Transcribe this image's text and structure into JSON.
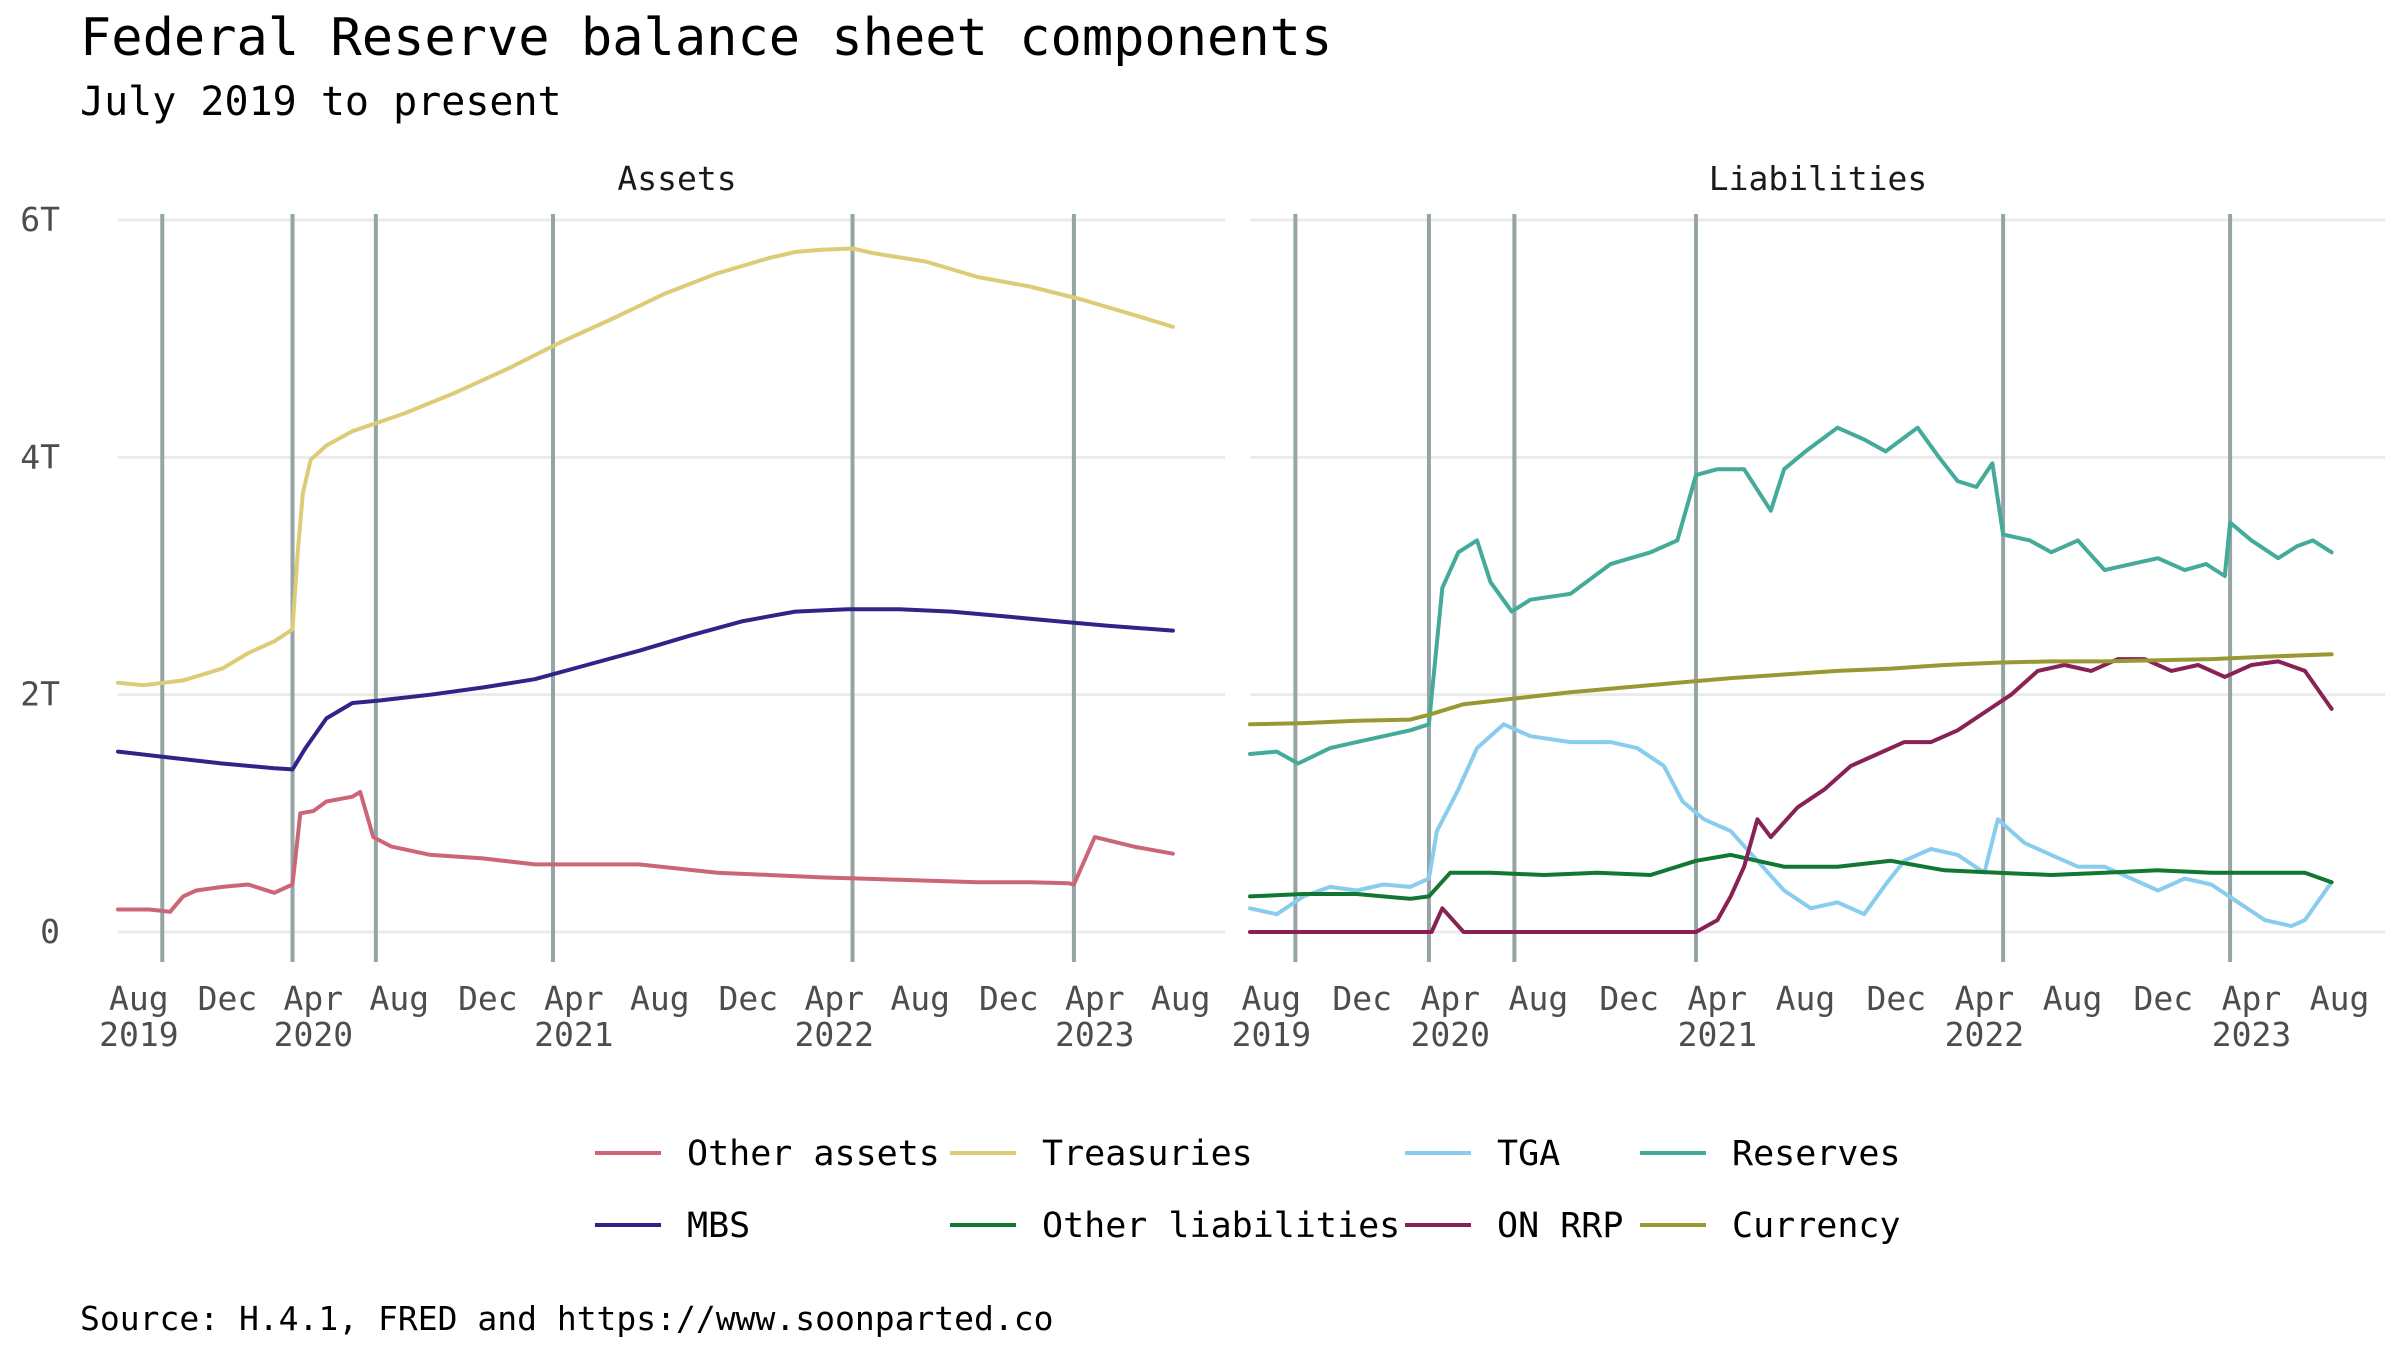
{
  "title": "Federal Reserve balance sheet components",
  "subtitle": "July 2019 to present",
  "caption": "Source: H.4.1, FRED and https://www.soonparted.co",
  "colors": {
    "other_assets": "#cc6677",
    "treasuries": "#ddcc77",
    "mbs": "#332288",
    "tga": "#88ccee",
    "reserves": "#44aa99",
    "other_liabilities": "#117733",
    "on_rrp": "#882255",
    "currency": "#999933",
    "event_lines": "#95a5a6"
  },
  "chart_data": {
    "type": "line",
    "facets": [
      "Assets",
      "Liabilities"
    ],
    "y_axis": {
      "ticks": [
        0,
        2,
        4,
        6
      ],
      "tick_labels": [
        "0",
        "2T",
        "4T",
        "6T"
      ],
      "ylim": [
        0,
        6
      ],
      "unit": "trillions USD"
    },
    "x_axis": {
      "xlim": [
        2019.5,
        2023.75
      ],
      "ticks": [
        2019.58,
        2019.92,
        2020.25,
        2020.58,
        2020.92,
        2021.25,
        2021.58,
        2021.92,
        2022.25,
        2022.58,
        2022.92,
        2023.25,
        2023.58
      ],
      "tick_labels": [
        "Aug\n2019",
        "Dec",
        "Apr\n2020",
        "Aug",
        "Dec",
        "Apr\n2021",
        "Aug",
        "Dec",
        "Apr\n2022",
        "Aug",
        "Dec",
        "Apr\n2023",
        "Aug"
      ]
    },
    "event_lines_x": [
      2019.67,
      2020.17,
      2020.49,
      2021.17,
      2022.32,
      2023.17
    ],
    "series": [
      {
        "facet": "Assets",
        "key": "other_assets",
        "name": "Other assets",
        "x": [
          2019.5,
          2019.62,
          2019.7,
          2019.75,
          2019.8,
          2019.9,
          2020.0,
          2020.1,
          2020.17,
          2020.2,
          2020.25,
          2020.3,
          2020.4,
          2020.43,
          2020.48,
          2020.55,
          2020.7,
          2020.9,
          2021.1,
          2021.3,
          2021.5,
          2021.8,
          2022.0,
          2022.2,
          2022.5,
          2022.8,
          2023.0,
          2023.15,
          2023.17,
          2023.25,
          2023.4,
          2023.55
        ],
        "values": [
          0.19,
          0.19,
          0.17,
          0.3,
          0.35,
          0.38,
          0.4,
          0.33,
          0.4,
          1.0,
          1.02,
          1.1,
          1.14,
          1.18,
          0.8,
          0.72,
          0.65,
          0.62,
          0.57,
          0.57,
          0.57,
          0.5,
          0.48,
          0.46,
          0.44,
          0.42,
          0.42,
          0.41,
          0.4,
          0.8,
          0.72,
          0.66
        ]
      },
      {
        "facet": "Assets",
        "key": "treasuries",
        "name": "Treasuries",
        "x": [
          2019.5,
          2019.6,
          2019.75,
          2019.9,
          2020.0,
          2020.1,
          2020.17,
          2020.19,
          2020.21,
          2020.24,
          2020.3,
          2020.4,
          2020.6,
          2020.8,
          2021.0,
          2021.2,
          2021.4,
          2021.6,
          2021.8,
          2022.0,
          2022.1,
          2022.2,
          2022.32,
          2022.4,
          2022.6,
          2022.8,
          2023.0,
          2023.2,
          2023.4,
          2023.55
        ],
        "values": [
          2.1,
          2.08,
          2.12,
          2.22,
          2.35,
          2.45,
          2.55,
          3.2,
          3.7,
          3.98,
          4.1,
          4.22,
          4.37,
          4.55,
          4.75,
          4.97,
          5.17,
          5.38,
          5.55,
          5.68,
          5.73,
          5.75,
          5.76,
          5.72,
          5.65,
          5.52,
          5.44,
          5.33,
          5.2,
          5.1
        ]
      },
      {
        "facet": "Assets",
        "key": "mbs",
        "name": "MBS",
        "x": [
          2019.5,
          2019.7,
          2019.9,
          2020.1,
          2020.17,
          2020.22,
          2020.3,
          2020.4,
          2020.5,
          2020.7,
          2020.9,
          2021.1,
          2021.3,
          2021.5,
          2021.7,
          2021.9,
          2022.1,
          2022.3,
          2022.5,
          2022.7,
          2022.9,
          2023.1,
          2023.3,
          2023.55
        ],
        "values": [
          1.52,
          1.47,
          1.42,
          1.38,
          1.37,
          1.55,
          1.8,
          1.93,
          1.95,
          2.0,
          2.06,
          2.13,
          2.25,
          2.37,
          2.5,
          2.62,
          2.7,
          2.72,
          2.72,
          2.7,
          2.66,
          2.62,
          2.58,
          2.54
        ]
      },
      {
        "facet": "Liabilities",
        "key": "tga",
        "name": "TGA",
        "x": [
          2019.5,
          2019.6,
          2019.7,
          2019.8,
          2019.9,
          2020.0,
          2020.1,
          2020.17,
          2020.2,
          2020.28,
          2020.35,
          2020.45,
          2020.55,
          2020.7,
          2020.85,
          2020.95,
          2021.05,
          2021.12,
          2021.2,
          2021.3,
          2021.4,
          2021.5,
          2021.6,
          2021.7,
          2021.8,
          2021.88,
          2021.95,
          2022.05,
          2022.15,
          2022.25,
          2022.3,
          2022.4,
          2022.5,
          2022.6,
          2022.7,
          2022.8,
          2022.9,
          2023.0,
          2023.1,
          2023.2,
          2023.3,
          2023.4,
          2023.45,
          2023.55
        ],
        "values": [
          0.2,
          0.15,
          0.3,
          0.38,
          0.35,
          0.4,
          0.38,
          0.45,
          0.85,
          1.2,
          1.55,
          1.75,
          1.65,
          1.6,
          1.6,
          1.55,
          1.4,
          1.1,
          0.95,
          0.85,
          0.6,
          0.35,
          0.2,
          0.25,
          0.15,
          0.4,
          0.6,
          0.7,
          0.65,
          0.5,
          0.95,
          0.75,
          0.65,
          0.55,
          0.55,
          0.45,
          0.35,
          0.45,
          0.4,
          0.25,
          0.1,
          0.05,
          0.1,
          0.42
        ]
      },
      {
        "facet": "Liabilities",
        "key": "reserves",
        "name": "Reserves",
        "x": [
          2019.5,
          2019.6,
          2019.68,
          2019.8,
          2019.9,
          2020.0,
          2020.1,
          2020.17,
          2020.22,
          2020.28,
          2020.35,
          2020.4,
          2020.48,
          2020.55,
          2020.7,
          2020.85,
          2021.0,
          2021.1,
          2021.17,
          2021.25,
          2021.35,
          2021.45,
          2021.5,
          2021.58,
          2021.7,
          2021.8,
          2021.88,
          2022.0,
          2022.08,
          2022.15,
          2022.22,
          2022.28,
          2022.32,
          2022.42,
          2022.5,
          2022.6,
          2022.7,
          2022.8,
          2022.9,
          2023.0,
          2023.08,
          2023.15,
          2023.17,
          2023.25,
          2023.35,
          2023.42,
          2023.48,
          2023.55
        ],
        "values": [
          1.5,
          1.52,
          1.42,
          1.55,
          1.6,
          1.65,
          1.7,
          1.75,
          2.9,
          3.2,
          3.3,
          2.95,
          2.7,
          2.8,
          2.85,
          3.1,
          3.2,
          3.3,
          3.85,
          3.9,
          3.9,
          3.55,
          3.9,
          4.05,
          4.25,
          4.15,
          4.05,
          4.25,
          4.0,
          3.8,
          3.75,
          3.95,
          3.35,
          3.3,
          3.2,
          3.3,
          3.05,
          3.1,
          3.15,
          3.05,
          3.1,
          3.0,
          3.45,
          3.3,
          3.15,
          3.25,
          3.3,
          3.2
        ]
      },
      {
        "facet": "Liabilities",
        "key": "other_liabilities",
        "name": "Other liabilities",
        "x": [
          2019.5,
          2019.7,
          2019.9,
          2020.1,
          2020.17,
          2020.25,
          2020.4,
          2020.6,
          2020.8,
          2021.0,
          2021.17,
          2021.3,
          2021.5,
          2021.7,
          2021.9,
          2022.1,
          2022.3,
          2022.5,
          2022.7,
          2022.9,
          2023.1,
          2023.3,
          2023.45,
          2023.55
        ],
        "values": [
          0.3,
          0.32,
          0.32,
          0.28,
          0.3,
          0.5,
          0.5,
          0.48,
          0.5,
          0.48,
          0.6,
          0.65,
          0.55,
          0.55,
          0.6,
          0.52,
          0.5,
          0.48,
          0.5,
          0.52,
          0.5,
          0.5,
          0.5,
          0.42
        ]
      },
      {
        "facet": "Liabilities",
        "key": "on_rrp",
        "name": "ON RRP",
        "x": [
          2019.5,
          2019.8,
          2020.1,
          2020.18,
          2020.22,
          2020.3,
          2020.6,
          2021.0,
          2021.17,
          2021.25,
          2021.3,
          2021.35,
          2021.4,
          2021.45,
          2021.55,
          2021.65,
          2021.75,
          2021.85,
          2021.95,
          2022.05,
          2022.15,
          2022.25,
          2022.35,
          2022.45,
          2022.55,
          2022.65,
          2022.75,
          2022.85,
          2022.95,
          2023.05,
          2023.15,
          2023.25,
          2023.35,
          2023.45,
          2023.55
        ],
        "values": [
          0.0,
          0.0,
          0.0,
          0.0,
          0.2,
          0.0,
          0.0,
          0.0,
          0.0,
          0.1,
          0.3,
          0.55,
          0.95,
          0.8,
          1.05,
          1.2,
          1.4,
          1.5,
          1.6,
          1.6,
          1.7,
          1.85,
          2.0,
          2.2,
          2.25,
          2.2,
          2.3,
          2.3,
          2.2,
          2.25,
          2.15,
          2.25,
          2.28,
          2.2,
          1.88
        ]
      },
      {
        "facet": "Liabilities",
        "key": "currency",
        "name": "Currency",
        "x": [
          2019.5,
          2019.7,
          2019.9,
          2020.1,
          2020.17,
          2020.3,
          2020.5,
          2020.7,
          2020.9,
          2021.1,
          2021.3,
          2021.5,
          2021.7,
          2021.9,
          2022.1,
          2022.3,
          2022.5,
          2022.7,
          2022.9,
          2023.1,
          2023.3,
          2023.55
        ],
        "values": [
          1.75,
          1.76,
          1.78,
          1.79,
          1.83,
          1.92,
          1.97,
          2.02,
          2.06,
          2.1,
          2.14,
          2.17,
          2.2,
          2.22,
          2.25,
          2.27,
          2.28,
          2.28,
          2.29,
          2.3,
          2.32,
          2.34
        ]
      }
    ]
  },
  "legend": [
    {
      "key": "other_assets",
      "label": "Other assets"
    },
    {
      "key": "treasuries",
      "label": "Treasuries"
    },
    {
      "key": "tga",
      "label": "TGA"
    },
    {
      "key": "reserves",
      "label": "Reserves"
    },
    {
      "key": "mbs",
      "label": "MBS"
    },
    {
      "key": "other_liabilities",
      "label": "Other liabilities"
    },
    {
      "key": "on_rrp",
      "label": "ON RRP"
    },
    {
      "key": "currency",
      "label": "Currency"
    }
  ]
}
